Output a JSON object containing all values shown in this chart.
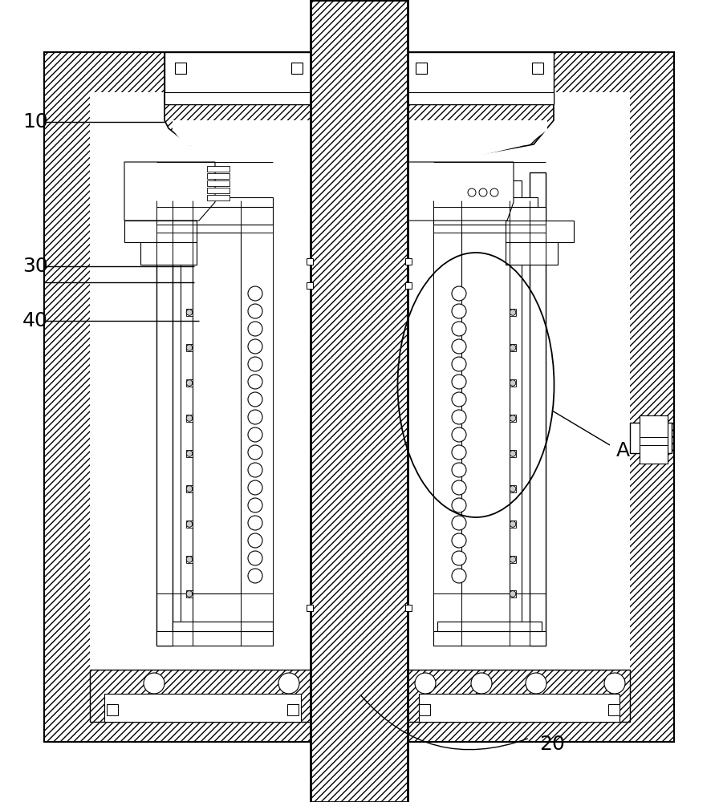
{
  "bg_color": "#ffffff",
  "line_color": "#000000",
  "label_10": "10",
  "label_20": "20",
  "label_30": "30",
  "label_40": "40",
  "label_A": "A",
  "fig_width": 8.96,
  "fig_height": 10.0,
  "dpi": 100
}
